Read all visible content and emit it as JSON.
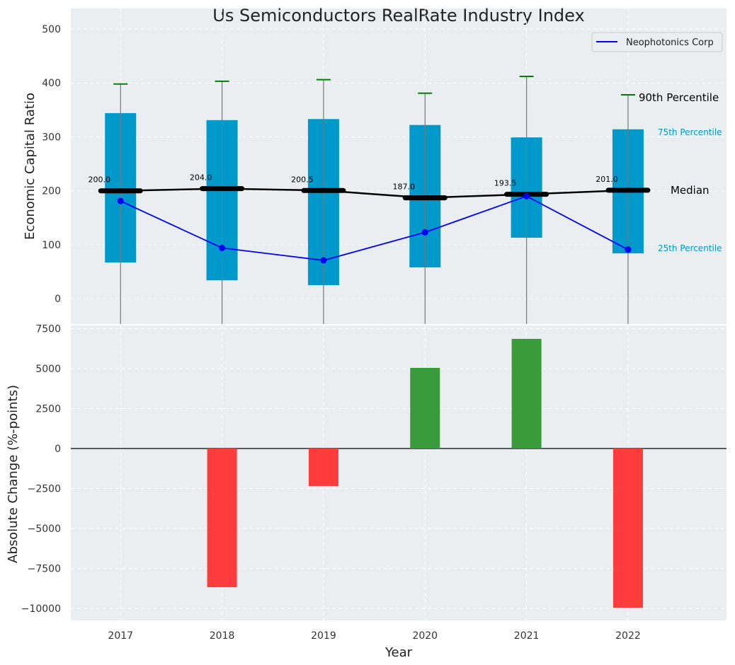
{
  "chart_data": [
    {
      "type": "box",
      "title": "Us Semiconductors RealRate Industry Index",
      "ylabel": "Economic Capital Ratio",
      "ylim": [
        -47,
        538
      ],
      "yticks": [
        0,
        100,
        200,
        300,
        400,
        500
      ],
      "categories": [
        "2017",
        "2018",
        "2019",
        "2020",
        "2021",
        "2022"
      ],
      "p25": [
        67,
        34,
        25,
        58,
        113,
        84
      ],
      "p75": [
        344,
        331,
        333,
        322,
        299,
        314
      ],
      "p90": [
        398,
        403,
        406,
        381,
        412,
        378
      ],
      "median": [
        200.0,
        204.0,
        200.5,
        187.0,
        193.5,
        201.0
      ],
      "median_labels": [
        "200.0",
        "204.0",
        "200.5",
        "187.0",
        "193.5",
        "201.0"
      ],
      "series": [
        {
          "name": "Neophotonics Corp",
          "values": [
            181,
            94,
            71,
            123,
            190,
            91
          ],
          "color": "#0000ff"
        }
      ],
      "annotations": {
        "p90": "90th Percentile",
        "p75": "75th Percentile",
        "median": "Median",
        "p25": "25th Percentile"
      },
      "legend": "top-right",
      "grid": true,
      "colors": {
        "box": "#0099cc",
        "whisker_cap": "#008000",
        "median": "#000000"
      }
    },
    {
      "type": "bar",
      "xlabel": "Year",
      "ylabel": "Absolute Change (%-points)",
      "ylim": [
        -10752,
        7699
      ],
      "yticks": [
        -10000,
        -7500,
        -5000,
        -2500,
        0,
        2500,
        5000,
        7500
      ],
      "ytick_labels": [
        "−10000",
        "−7500",
        "−5000",
        "−2500",
        "0",
        "2500",
        "5000",
        "7500"
      ],
      "categories": [
        "2017",
        "2018",
        "2019",
        "2020",
        "2021",
        "2022"
      ],
      "values": [
        0,
        -8673,
        -2345,
        5044,
        6858,
        -9956
      ],
      "grid": true,
      "colors": {
        "positive": "#3a9b3a",
        "negative": "#ff3c3c"
      }
    }
  ]
}
